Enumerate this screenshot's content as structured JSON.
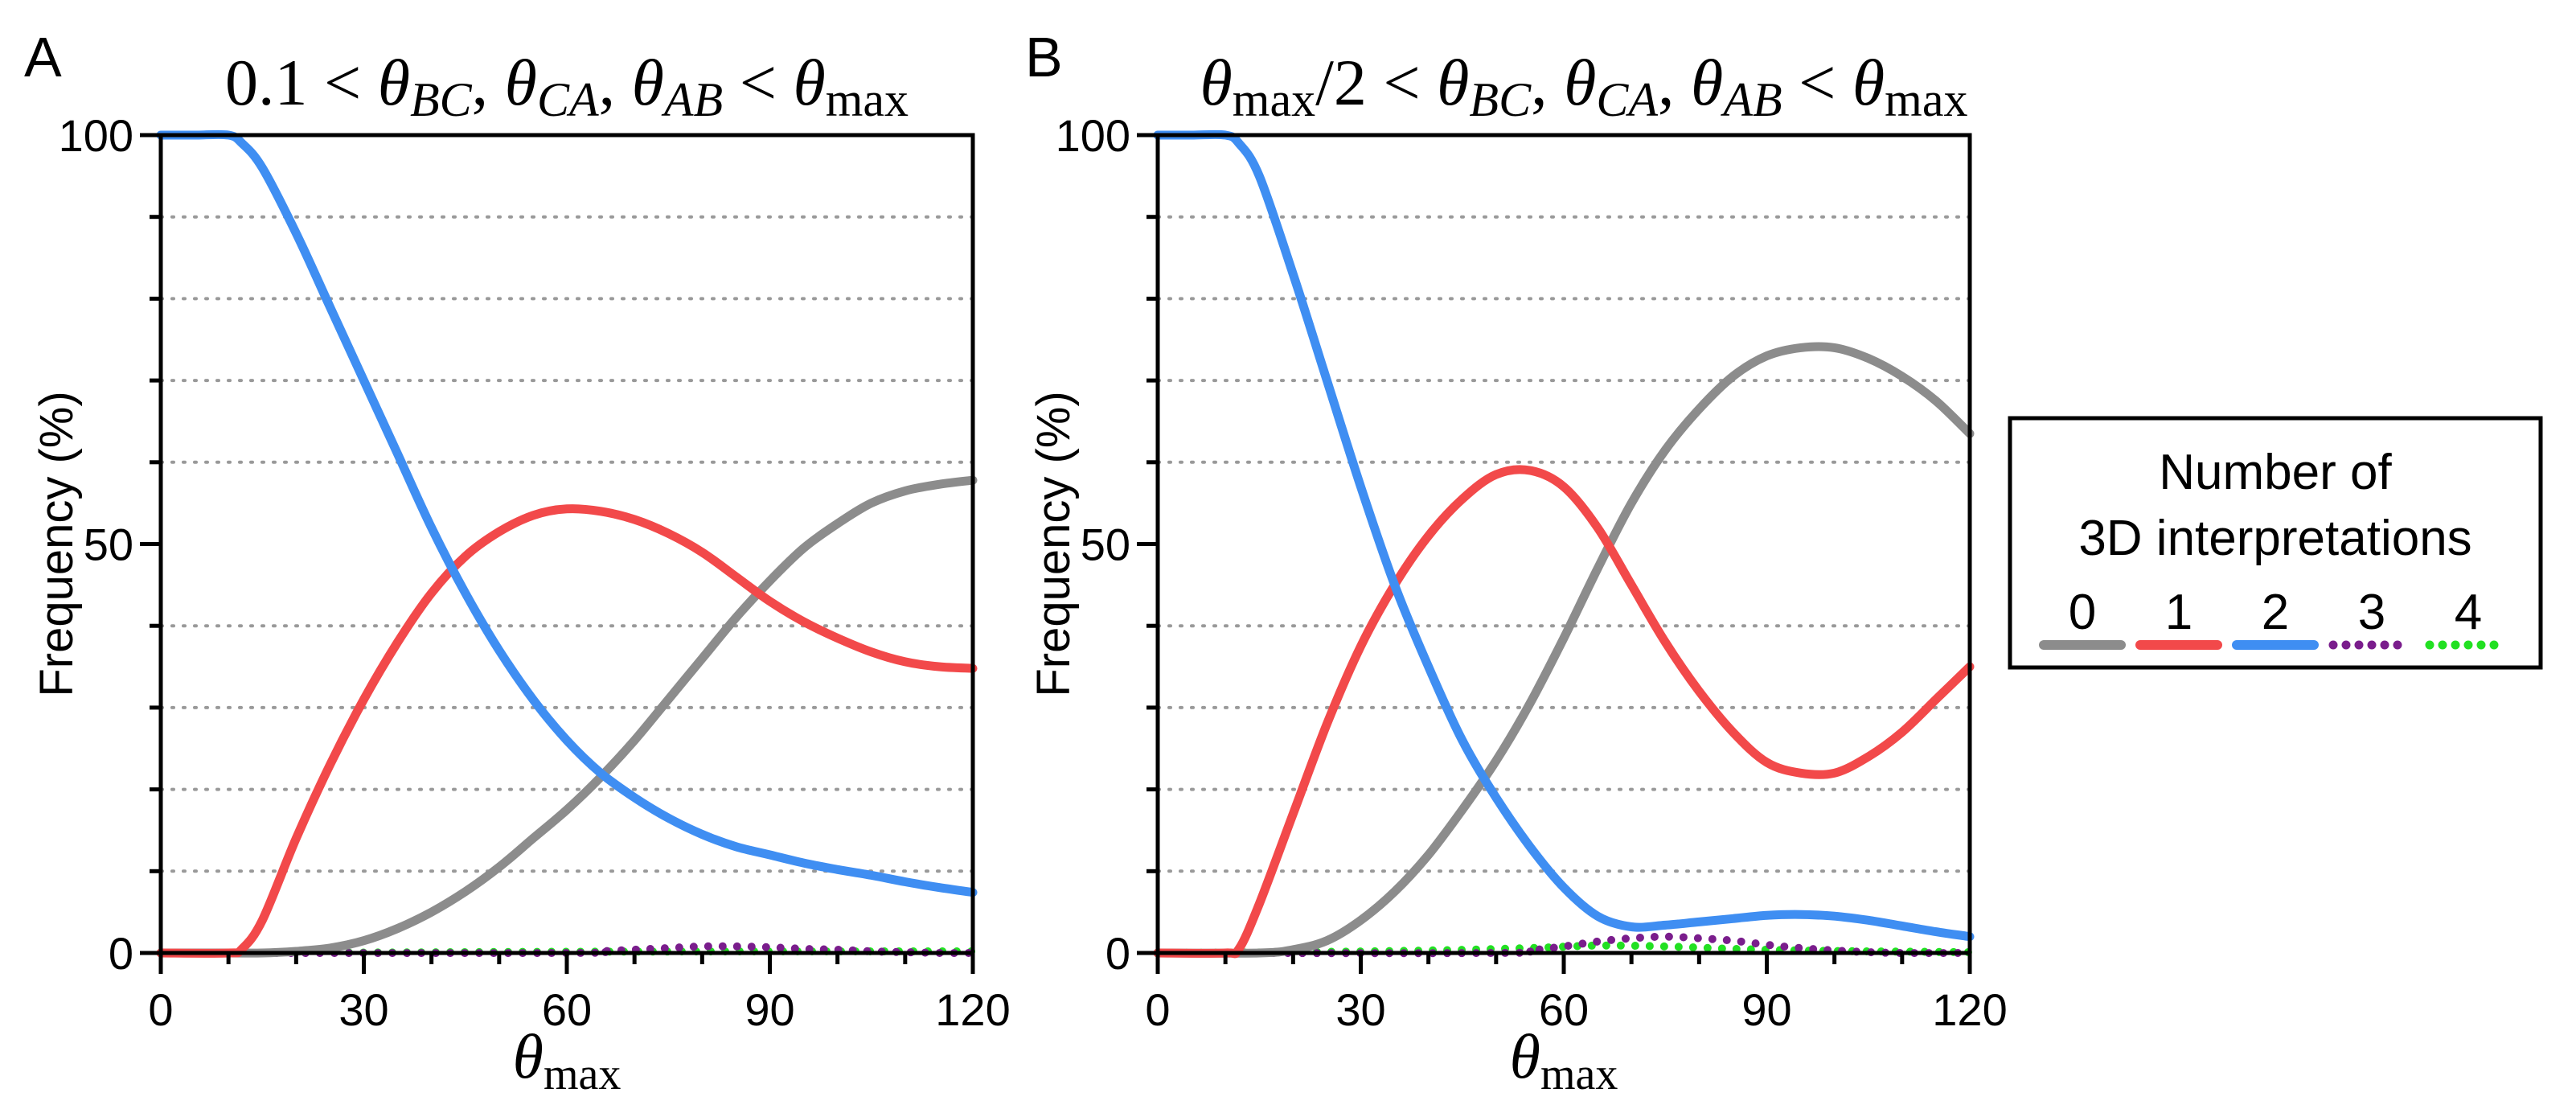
{
  "chart_data": [
    {
      "type": "line",
      "panel_label": "A",
      "title": {
        "parts": [
          {
            "t": "0.1 < ",
            "s": "n"
          },
          {
            "t": "θ",
            "s": "i"
          },
          {
            "t": "BC",
            "s": "isub"
          },
          {
            "t": ", ",
            "s": "n"
          },
          {
            "t": "θ",
            "s": "i"
          },
          {
            "t": "CA",
            "s": "isub"
          },
          {
            "t": ", ",
            "s": "n"
          },
          {
            "t": "θ",
            "s": "i"
          },
          {
            "t": "AB",
            "s": "isub"
          },
          {
            "t": " < ",
            "s": "n"
          },
          {
            "t": "θ",
            "s": "i"
          },
          {
            "t": "max",
            "s": "sub"
          }
        ]
      },
      "ylabel": "Frequency (%)",
      "xlabel": {
        "symbol": "θ",
        "subscript": "max"
      },
      "xlim": [
        0,
        120
      ],
      "ylim": [
        0,
        100
      ],
      "xticks": [
        0,
        30,
        60,
        90,
        120
      ],
      "yticks": [
        0,
        50,
        100
      ],
      "minor_yticks": [
        10,
        20,
        30,
        40,
        60,
        70,
        80,
        90
      ],
      "xticklabels": [
        "0",
        "30",
        "60",
        "90",
        "120"
      ],
      "yticklabels": [
        "0",
        "50",
        "100"
      ],
      "grid": "dotted-horizontal",
      "series": [
        {
          "name": "0",
          "color": "#8c8c8c",
          "style": "solid",
          "x": [
            0,
            10,
            15,
            20,
            25,
            30,
            35,
            40,
            45,
            50,
            55,
            60,
            65,
            70,
            75,
            80,
            85,
            90,
            95,
            100,
            105,
            110,
            115,
            120
          ],
          "y": [
            0,
            0,
            0,
            0.2,
            0.6,
            1.5,
            3,
            5,
            7.5,
            10.5,
            14,
            17.5,
            21.5,
            26,
            31,
            36,
            41,
            45.5,
            49.5,
            52.5,
            55,
            56.5,
            57.3,
            57.8
          ]
        },
        {
          "name": "1",
          "color": "#f2494a",
          "style": "solid",
          "x": [
            0,
            10,
            12,
            15,
            20,
            25,
            30,
            35,
            40,
            45,
            50,
            55,
            60,
            65,
            70,
            75,
            80,
            85,
            90,
            95,
            100,
            105,
            110,
            115,
            120
          ],
          "y": [
            0,
            0,
            0.5,
            4,
            14,
            23,
            31,
            38,
            44,
            48.5,
            51.5,
            53.5,
            54.3,
            54,
            53,
            51.3,
            49,
            46,
            43,
            40.5,
            38.5,
            36.8,
            35.6,
            35,
            34.8
          ]
        },
        {
          "name": "2",
          "color": "#3f8ef2",
          "style": "solid",
          "x": [
            0,
            5,
            10,
            12,
            15,
            20,
            25,
            30,
            35,
            40,
            45,
            50,
            55,
            60,
            65,
            70,
            75,
            80,
            85,
            90,
            95,
            100,
            105,
            110,
            115,
            120
          ],
          "y": [
            100,
            100,
            100,
            99,
            96,
            88,
            79,
            70,
            61,
            52,
            44,
            37,
            31,
            26,
            22,
            19,
            16.5,
            14.5,
            13,
            12,
            11,
            10.2,
            9.5,
            8.7,
            8,
            7.4
          ]
        },
        {
          "name": "3",
          "color": "#7a1d8c",
          "style": "dotted",
          "x": [
            0,
            60,
            65,
            70,
            75,
            80,
            85,
            90,
            95,
            100,
            105,
            110,
            115,
            120
          ],
          "y": [
            0,
            0,
            0.2,
            0.4,
            0.6,
            0.8,
            0.8,
            0.7,
            0.5,
            0.4,
            0.2,
            0.1,
            0,
            0
          ]
        },
        {
          "name": "4",
          "color": "#22e022",
          "style": "dotted",
          "x": [
            0,
            30,
            60,
            90,
            120
          ],
          "y": [
            0,
            0.05,
            0.15,
            0.2,
            0.2
          ]
        }
      ]
    },
    {
      "type": "line",
      "panel_label": "B",
      "title": {
        "parts": [
          {
            "t": "θ",
            "s": "i"
          },
          {
            "t": "max",
            "s": "sub"
          },
          {
            "t": "/2 < ",
            "s": "n"
          },
          {
            "t": "θ",
            "s": "i"
          },
          {
            "t": "BC",
            "s": "isub"
          },
          {
            "t": ", ",
            "s": "n"
          },
          {
            "t": "θ",
            "s": "i"
          },
          {
            "t": "CA",
            "s": "isub"
          },
          {
            "t": ", ",
            "s": "n"
          },
          {
            "t": "θ",
            "s": "i"
          },
          {
            "t": "AB",
            "s": "isub"
          },
          {
            "t": " < ",
            "s": "n"
          },
          {
            "t": "θ",
            "s": "i"
          },
          {
            "t": "max",
            "s": "sub"
          }
        ]
      },
      "ylabel": "Frequency (%)",
      "xlabel": {
        "symbol": "θ",
        "subscript": "max"
      },
      "xlim": [
        0,
        120
      ],
      "ylim": [
        0,
        100
      ],
      "xticks": [
        0,
        30,
        60,
        90,
        120
      ],
      "yticks": [
        0,
        50,
        100
      ],
      "minor_yticks": [
        10,
        20,
        30,
        40,
        60,
        70,
        80,
        90
      ],
      "xticklabels": [
        "0",
        "30",
        "60",
        "90",
        "120"
      ],
      "yticklabels": [
        "0",
        "50",
        "100"
      ],
      "grid": "dotted-horizontal",
      "series": [
        {
          "name": "0",
          "color": "#8c8c8c",
          "style": "solid",
          "x": [
            0,
            15,
            20,
            25,
            30,
            35,
            40,
            45,
            50,
            55,
            60,
            65,
            70,
            75,
            80,
            85,
            90,
            95,
            100,
            105,
            110,
            115,
            120
          ],
          "y": [
            0,
            0,
            0.4,
            1.5,
            4,
            7.5,
            12,
            17.5,
            23.5,
            30.5,
            38.5,
            47,
            55,
            61.5,
            66.5,
            70.5,
            73,
            74,
            74,
            72.7,
            70.5,
            67.5,
            63.5
          ]
        },
        {
          "name": "1",
          "color": "#f2494a",
          "style": "solid",
          "x": [
            0,
            10,
            12,
            15,
            20,
            25,
            30,
            35,
            40,
            45,
            50,
            55,
            60,
            65,
            70,
            75,
            80,
            85,
            90,
            95,
            100,
            105,
            110,
            115,
            120
          ],
          "y": [
            0,
            0,
            0.5,
            6,
            17,
            28,
            37.5,
            45,
            51,
            55.5,
            58.5,
            59,
            57,
            52,
            45,
            38,
            32,
            27,
            23.3,
            22,
            22,
            24,
            27,
            31,
            35
          ]
        },
        {
          "name": "2",
          "color": "#3f8ef2",
          "style": "solid",
          "x": [
            0,
            5,
            10,
            12,
            15,
            20,
            25,
            30,
            35,
            40,
            45,
            50,
            55,
            60,
            65,
            70,
            75,
            80,
            85,
            90,
            95,
            100,
            105,
            110,
            115,
            120
          ],
          "y": [
            100,
            100,
            100,
            99,
            95,
            83,
            70,
            57,
            45,
            35,
            26,
            19,
            13,
            8,
            4.5,
            3.2,
            3.4,
            3.8,
            4.2,
            4.6,
            4.7,
            4.5,
            4,
            3.3,
            2.6,
            2
          ]
        },
        {
          "name": "3",
          "color": "#7a1d8c",
          "style": "dotted",
          "x": [
            0,
            50,
            55,
            60,
            65,
            70,
            75,
            80,
            85,
            90,
            95,
            100,
            105,
            110,
            120
          ],
          "y": [
            0,
            0,
            0.3,
            0.8,
            1.4,
            1.8,
            2,
            1.8,
            1.5,
            1,
            0.6,
            0.3,
            0.1,
            0,
            0
          ]
        },
        {
          "name": "4",
          "color": "#22e022",
          "style": "dotted",
          "x": [
            0,
            20,
            40,
            55,
            65,
            75,
            85,
            95,
            105,
            120
          ],
          "y": [
            0,
            0.1,
            0.3,
            0.6,
            0.9,
            0.8,
            0.5,
            0.3,
            0.2,
            0.1
          ]
        }
      ]
    }
  ],
  "legend": {
    "title_line1": "Number of",
    "title_line2": "3D interpretations",
    "entries": [
      {
        "label": "0",
        "color": "#8c8c8c",
        "style": "solid"
      },
      {
        "label": "1",
        "color": "#f2494a",
        "style": "solid"
      },
      {
        "label": "2",
        "color": "#3f8ef2",
        "style": "solid"
      },
      {
        "label": "3",
        "color": "#7a1d8c",
        "style": "dotted"
      },
      {
        "label": "4",
        "color": "#22e022",
        "style": "dotted"
      }
    ]
  }
}
